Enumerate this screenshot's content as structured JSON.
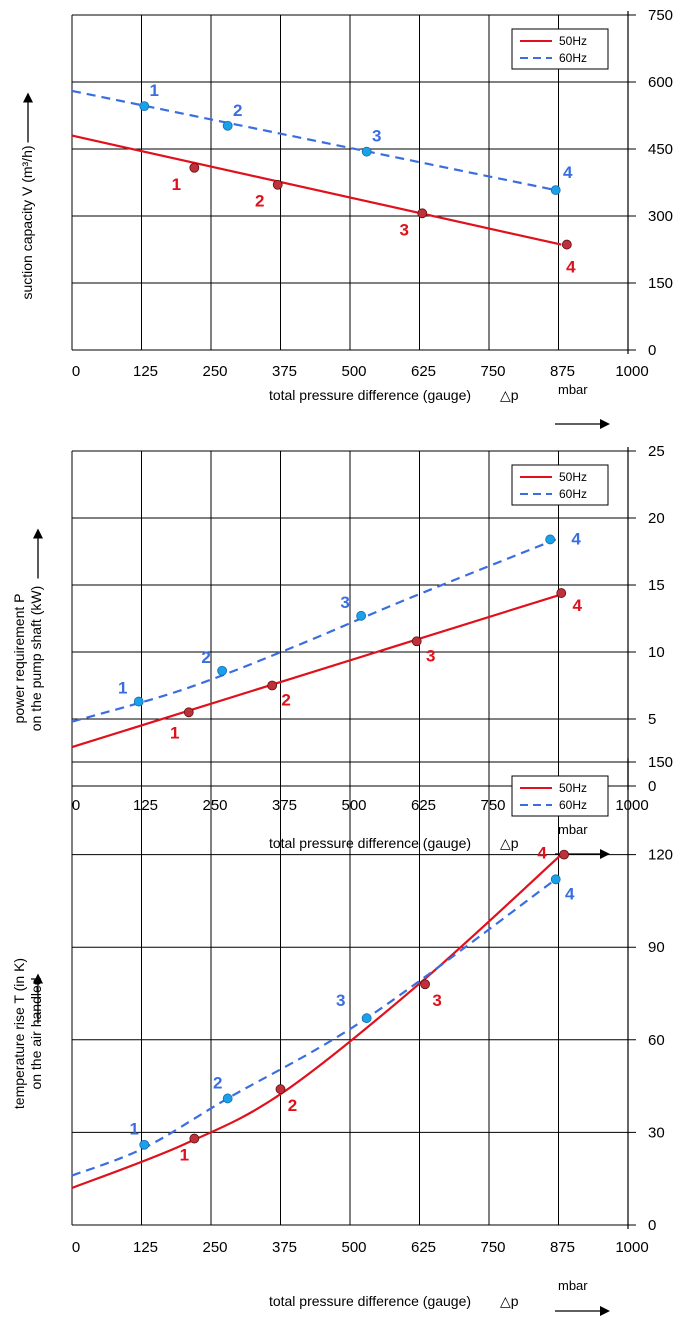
{
  "colors": {
    "s50": "#e0101c",
    "s60": "#3a6ee0",
    "dot50": "#c0303a",
    "dot60": "#1aa2e8",
    "grid": "#000000"
  },
  "charts": [
    {
      "type": "line",
      "ylabel": [
        "suction capacity V (m³/h)"
      ],
      "xlabel": "total pressure difference (gauge)",
      "xsymbol": "△p",
      "unit": "mbar",
      "xlim": [
        0,
        1000
      ],
      "ylim": [
        0,
        750
      ],
      "xticks": [
        "0",
        "125",
        "250",
        "375",
        "500",
        "625",
        "750",
        "875",
        "1000"
      ],
      "yticks": [
        "0",
        "150",
        "300",
        "450",
        "600",
        "750"
      ],
      "legend": [
        "50Hz",
        "60Hz"
      ],
      "series": [
        {
          "name": "50Hz",
          "curve": [
            [
              0,
              480
            ],
            [
              880,
              236
            ]
          ],
          "points": [
            [
              220,
              408
            ],
            [
              370,
              370
            ],
            [
              630,
              306
            ],
            [
              890,
              236
            ]
          ],
          "labels": [
            "1",
            "2",
            "3",
            "4"
          ]
        },
        {
          "name": "60Hz",
          "curve": [
            [
              0,
              580
            ],
            [
              870,
              358
            ]
          ],
          "points": [
            [
              130,
              546
            ],
            [
              280,
              502
            ],
            [
              530,
              444
            ],
            [
              870,
              358
            ]
          ],
          "labels": [
            "1",
            "2",
            "3",
            "4"
          ]
        }
      ]
    },
    {
      "type": "line",
      "ylabel": [
        "power requirement P",
        "on the pump shaft (kW)"
      ],
      "xlabel": "total pressure difference (gauge)",
      "xsymbol": "△p",
      "unit": "mbar",
      "xlim": [
        0,
        1000
      ],
      "ylim": [
        0,
        25
      ],
      "xticks": [
        "0",
        "125",
        "250",
        "375",
        "500",
        "625",
        "750",
        "875",
        "1000"
      ],
      "yticks": [
        "0",
        "5",
        "10",
        "15",
        "20",
        "25"
      ],
      "legend": [
        "50Hz",
        "60Hz"
      ],
      "series": [
        {
          "name": "50Hz",
          "curve": [
            [
              0,
              2.9
            ],
            [
              880,
              14.3
            ]
          ],
          "points": [
            [
              210,
              5.5
            ],
            [
              360,
              7.5
            ],
            [
              620,
              10.8
            ],
            [
              880,
              14.4
            ]
          ],
          "labels": [
            "1",
            "2",
            "3",
            "4"
          ]
        },
        {
          "name": "60Hz",
          "curve": [
            [
              0,
              4.8
            ],
            [
              200,
              7.2
            ],
            [
              400,
              10.4
            ],
            [
              600,
              13.9
            ],
            [
              870,
              18.4
            ]
          ],
          "points": [
            [
              120,
              6.3
            ],
            [
              270,
              8.6
            ],
            [
              520,
              12.7
            ],
            [
              860,
              18.4
            ]
          ],
          "labels": [
            "1",
            "2",
            "3",
            "4"
          ]
        }
      ]
    },
    {
      "type": "line",
      "ylabel": [
        "temperature rise T (in K)",
        "on the air handled"
      ],
      "xlabel": "total pressure difference (gauge)",
      "xsymbol": "△p",
      "unit": "mbar",
      "xlim": [
        0,
        1000
      ],
      "ylim": [
        0,
        150
      ],
      "xticks": [
        "0",
        "125",
        "250",
        "375",
        "500",
        "625",
        "750",
        "875",
        "1000"
      ],
      "yticks": [
        "0",
        "30",
        "60",
        "90",
        "120",
        "150"
      ],
      "legend": [
        "50Hz",
        "60Hz"
      ],
      "series": [
        {
          "name": "50Hz",
          "curve": [
            [
              0,
              12
            ],
            [
              200,
              26
            ],
            [
              380,
              43
            ],
            [
              630,
              79
            ],
            [
              880,
              120
            ]
          ],
          "points": [
            [
              220,
              28
            ],
            [
              375,
              44
            ],
            [
              635,
              78
            ],
            [
              885,
              120
            ]
          ],
          "labels": [
            "1",
            "2",
            "3",
            "4"
          ]
        },
        {
          "name": "60Hz",
          "curve": [
            [
              0,
              16
            ],
            [
              130,
              25
            ],
            [
              280,
              41
            ],
            [
              530,
              67
            ],
            [
              870,
              112
            ]
          ],
          "points": [
            [
              130,
              26
            ],
            [
              280,
              41
            ],
            [
              530,
              67
            ],
            [
              870,
              112
            ]
          ],
          "labels": [
            "1",
            "2",
            "3",
            "4"
          ]
        }
      ]
    }
  ]
}
